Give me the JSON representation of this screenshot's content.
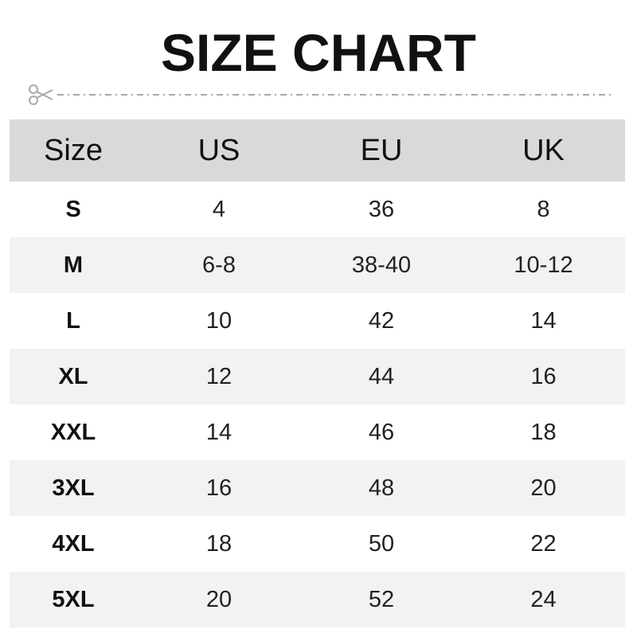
{
  "title": "SIZE CHART",
  "icons": {
    "cut_line": "scissors-icon"
  },
  "colors": {
    "header_bg": "#d9d9d9",
    "alt_row_bg": "#f2f2f2",
    "text": "#111111",
    "cut_line": "#a0a0a0"
  },
  "chart_data": {
    "type": "table",
    "columns": [
      "Size",
      "US",
      "EU",
      "UK"
    ],
    "rows": [
      [
        "S",
        "4",
        "36",
        "8"
      ],
      [
        "M",
        "6-8",
        "38-40",
        "10-12"
      ],
      [
        "L",
        "10",
        "42",
        "14"
      ],
      [
        "XL",
        "12",
        "44",
        "16"
      ],
      [
        "XXL",
        "14",
        "46",
        "18"
      ],
      [
        "3XL",
        "16",
        "48",
        "20"
      ],
      [
        "4XL",
        "18",
        "50",
        "22"
      ],
      [
        "5XL",
        "20",
        "52",
        "24"
      ]
    ]
  }
}
